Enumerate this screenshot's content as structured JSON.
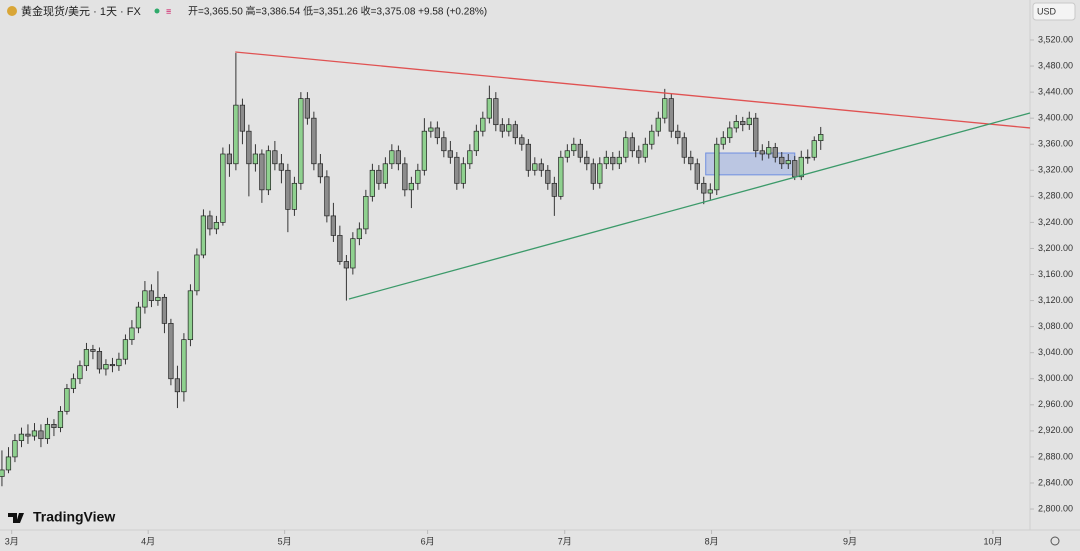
{
  "chart_data": {
    "type": "candlestick",
    "title": "黄金现货/美元 · 1天 · FX",
    "ohlc_text": "开=3,365.50 高=3,386.54 低=3,351.26 收=3,375.08 +9.58 (+0.28%)",
    "currency": "USD",
    "brand": "TradingView",
    "up_color": "#8fd18f",
    "down_color": "#8c8c8c",
    "values": [
      [
        2850,
        2890,
        2835,
        2860
      ],
      [
        2860,
        2895,
        2855,
        2880
      ],
      [
        2880,
        2915,
        2872,
        2905
      ],
      [
        2905,
        2925,
        2895,
        2915
      ],
      [
        2915,
        2930,
        2900,
        2912
      ],
      [
        2912,
        2932,
        2905,
        2920
      ],
      [
        2920,
        2930,
        2895,
        2908
      ],
      [
        2908,
        2940,
        2900,
        2930
      ],
      [
        2930,
        2938,
        2912,
        2925
      ],
      [
        2925,
        2958,
        2918,
        2950
      ],
      [
        2950,
        2992,
        2945,
        2985
      ],
      [
        2985,
        3008,
        2978,
        3000
      ],
      [
        3000,
        3028,
        2992,
        3020
      ],
      [
        3020,
        3055,
        3012,
        3045
      ],
      [
        3045,
        3052,
        3030,
        3042
      ],
      [
        3042,
        3048,
        3008,
        3015
      ],
      [
        3015,
        3030,
        3005,
        3022
      ],
      [
        3022,
        3032,
        3010,
        3020
      ],
      [
        3020,
        3040,
        3012,
        3030
      ],
      [
        3030,
        3068,
        3022,
        3060
      ],
      [
        3060,
        3090,
        3052,
        3078
      ],
      [
        3078,
        3118,
        3070,
        3110
      ],
      [
        3110,
        3150,
        3100,
        3135
      ],
      [
        3135,
        3145,
        3110,
        3120
      ],
      [
        3120,
        3165,
        3112,
        3125
      ],
      [
        3125,
        3130,
        3070,
        3085
      ],
      [
        3085,
        3092,
        2990,
        3000
      ],
      [
        3000,
        3020,
        2955,
        2980
      ],
      [
        2980,
        3070,
        2965,
        3060
      ],
      [
        3060,
        3145,
        3050,
        3135
      ],
      [
        3135,
        3200,
        3128,
        3190
      ],
      [
        3190,
        3260,
        3185,
        3250
      ],
      [
        3250,
        3258,
        3220,
        3230
      ],
      [
        3230,
        3250,
        3222,
        3240
      ],
      [
        3240,
        3355,
        3235,
        3345
      ],
      [
        3345,
        3360,
        3310,
        3330
      ],
      [
        3330,
        3500,
        3320,
        3420
      ],
      [
        3420,
        3430,
        3360,
        3380
      ],
      [
        3380,
        3390,
        3280,
        3330
      ],
      [
        3330,
        3360,
        3318,
        3345
      ],
      [
        3345,
        3352,
        3270,
        3290
      ],
      [
        3290,
        3358,
        3282,
        3350
      ],
      [
        3350,
        3365,
        3320,
        3330
      ],
      [
        3330,
        3345,
        3300,
        3320
      ],
      [
        3320,
        3330,
        3225,
        3260
      ],
      [
        3260,
        3310,
        3250,
        3300
      ],
      [
        3300,
        3440,
        3290,
        3430
      ],
      [
        3430,
        3440,
        3390,
        3400
      ],
      [
        3400,
        3410,
        3320,
        3330
      ],
      [
        3330,
        3345,
        3300,
        3310
      ],
      [
        3310,
        3320,
        3240,
        3250
      ],
      [
        3250,
        3270,
        3210,
        3220
      ],
      [
        3220,
        3235,
        3175,
        3180
      ],
      [
        3180,
        3190,
        3120,
        3170
      ],
      [
        3170,
        3225,
        3160,
        3215
      ],
      [
        3215,
        3240,
        3205,
        3230
      ],
      [
        3230,
        3290,
        3222,
        3280
      ],
      [
        3280,
        3330,
        3272,
        3320
      ],
      [
        3320,
        3328,
        3290,
        3300
      ],
      [
        3300,
        3340,
        3292,
        3330
      ],
      [
        3330,
        3360,
        3322,
        3350
      ],
      [
        3350,
        3358,
        3320,
        3330
      ],
      [
        3330,
        3340,
        3280,
        3290
      ],
      [
        3290,
        3310,
        3262,
        3300
      ],
      [
        3300,
        3330,
        3290,
        3320
      ],
      [
        3320,
        3400,
        3312,
        3380
      ],
      [
        3380,
        3395,
        3370,
        3385
      ],
      [
        3385,
        3395,
        3360,
        3370
      ],
      [
        3370,
        3380,
        3340,
        3350
      ],
      [
        3350,
        3365,
        3330,
        3340
      ],
      [
        3340,
        3348,
        3290,
        3300
      ],
      [
        3300,
        3340,
        3292,
        3330
      ],
      [
        3330,
        3360,
        3322,
        3350
      ],
      [
        3350,
        3390,
        3342,
        3380
      ],
      [
        3380,
        3410,
        3372,
        3400
      ],
      [
        3400,
        3450,
        3392,
        3430
      ],
      [
        3430,
        3440,
        3380,
        3390
      ],
      [
        3390,
        3400,
        3370,
        3380
      ],
      [
        3380,
        3400,
        3372,
        3390
      ],
      [
        3390,
        3396,
        3360,
        3370
      ],
      [
        3370,
        3375,
        3350,
        3360
      ],
      [
        3360,
        3368,
        3310,
        3320
      ],
      [
        3320,
        3340,
        3312,
        3330
      ],
      [
        3330,
        3338,
        3310,
        3320
      ],
      [
        3320,
        3328,
        3290,
        3300
      ],
      [
        3300,
        3310,
        3250,
        3280
      ],
      [
        3280,
        3350,
        3275,
        3340
      ],
      [
        3340,
        3360,
        3332,
        3350
      ],
      [
        3350,
        3370,
        3342,
        3360
      ],
      [
        3360,
        3368,
        3332,
        3340
      ],
      [
        3340,
        3350,
        3320,
        3330
      ],
      [
        3330,
        3338,
        3290,
        3300
      ],
      [
        3300,
        3340,
        3292,
        3330
      ],
      [
        3330,
        3350,
        3322,
        3340
      ],
      [
        3340,
        3348,
        3320,
        3330
      ],
      [
        3330,
        3350,
        3322,
        3340
      ],
      [
        3340,
        3380,
        3332,
        3370
      ],
      [
        3370,
        3378,
        3340,
        3350
      ],
      [
        3350,
        3358,
        3330,
        3340
      ],
      [
        3340,
        3370,
        3332,
        3360
      ],
      [
        3360,
        3390,
        3352,
        3380
      ],
      [
        3380,
        3410,
        3372,
        3400
      ],
      [
        3400,
        3445,
        3392,
        3430
      ],
      [
        3430,
        3438,
        3370,
        3380
      ],
      [
        3380,
        3390,
        3360,
        3370
      ],
      [
        3370,
        3378,
        3330,
        3340
      ],
      [
        3340,
        3350,
        3320,
        3330
      ],
      [
        3330,
        3338,
        3290,
        3300
      ],
      [
        3300,
        3310,
        3268,
        3285
      ],
      [
        3285,
        3300,
        3275,
        3290
      ],
      [
        3290,
        3370,
        3282,
        3360
      ],
      [
        3360,
        3380,
        3352,
        3370
      ],
      [
        3370,
        3395,
        3362,
        3385
      ],
      [
        3385,
        3405,
        3378,
        3395
      ],
      [
        3395,
        3402,
        3380,
        3390
      ],
      [
        3390,
        3410,
        3382,
        3400
      ],
      [
        3400,
        3408,
        3340,
        3350
      ],
      [
        3350,
        3360,
        3335,
        3345
      ],
      [
        3345,
        3365,
        3338,
        3355
      ],
      [
        3355,
        3362,
        3332,
        3340
      ],
      [
        3340,
        3348,
        3322,
        3330
      ],
      [
        3330,
        3345,
        3322,
        3335
      ],
      [
        3335,
        3342,
        3305,
        3310
      ],
      [
        3310,
        3350,
        3305,
        3340
      ],
      [
        3340,
        3352,
        3330,
        3340
      ],
      [
        3340,
        3372,
        3335,
        3365.5
      ],
      [
        3365.5,
        3386.54,
        3351.26,
        3375.08
      ]
    ],
    "xlim": [
      -0.3,
      158.2
    ],
    "xticks": [
      {
        "value": 1.5,
        "label": "3月"
      },
      {
        "value": 22.5,
        "label": "4月"
      },
      {
        "value": 43.5,
        "label": "5月"
      },
      {
        "value": 65.5,
        "label": "6月"
      },
      {
        "value": 86.6,
        "label": "7月"
      },
      {
        "value": 109.2,
        "label": "8月"
      },
      {
        "value": 130.5,
        "label": "9月"
      },
      {
        "value": 152.5,
        "label": "10月"
      }
    ],
    "ylim": [
      2775.5,
      3581.4
    ],
    "yticks": [
      {
        "value": 2800,
        "label": "2,800.00"
      },
      {
        "value": 2840,
        "label": "2,840.00"
      },
      {
        "value": 2880,
        "label": "2,880.00"
      },
      {
        "value": 2920,
        "label": "2,920.00"
      },
      {
        "value": 2960,
        "label": "2,960.00"
      },
      {
        "value": 3000,
        "label": "3,000.00"
      },
      {
        "value": 3040,
        "label": "3,040.00"
      },
      {
        "value": 3080,
        "label": "3,080.00"
      },
      {
        "value": 3120,
        "label": "3,120.00"
      },
      {
        "value": 3160,
        "label": "3,160.00"
      },
      {
        "value": 3200,
        "label": "3,200.00"
      },
      {
        "value": 3240,
        "label": "3,240.00"
      },
      {
        "value": 3280,
        "label": "3,280.00"
      },
      {
        "value": 3320,
        "label": "3,320.00"
      },
      {
        "value": 3360,
        "label": "3,360.00"
      },
      {
        "value": 3400,
        "label": "3,400.00"
      },
      {
        "value": 3440,
        "label": "3,440.00"
      },
      {
        "value": 3480,
        "label": "3,480.00"
      },
      {
        "value": 3520,
        "label": "3,520.00"
      }
    ],
    "trendlines": [
      {
        "color": "#e05252",
        "points": [
          [
            35.9,
            3501.6
          ],
          [
            158.2,
            3385
          ]
        ]
      },
      {
        "color": "#3c9a6a",
        "points": [
          [
            53.4,
            3122.4
          ],
          [
            158.2,
            3408
          ]
        ]
      }
    ],
    "zone": {
      "color": "#6f8fe0",
      "x": [
        108.3,
        122
      ],
      "y": [
        3313,
        3346.5
      ]
    }
  }
}
